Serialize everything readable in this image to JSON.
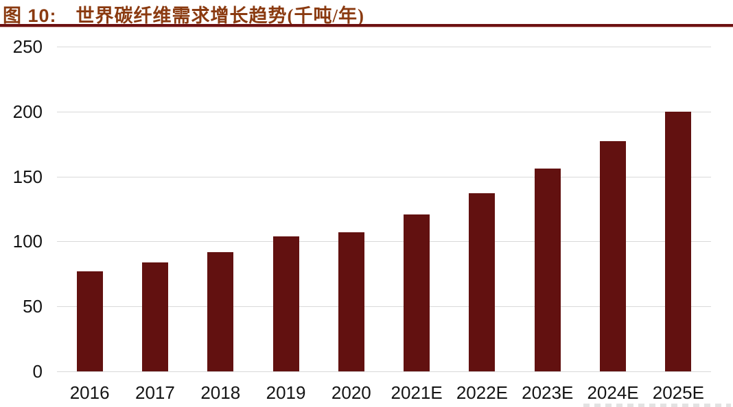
{
  "header": {
    "figure_label": "图 10:",
    "title": "世界碳纤维需求增长趋势(千吨/年)"
  },
  "colors": {
    "bar": "#621110",
    "title_text": "#8a3a10",
    "title_rule": "#6d1112",
    "gridline": "#d9d9d9",
    "axis_text": "#141414",
    "background": "#ffffff"
  },
  "chart_data": {
    "type": "bar",
    "title": "世界碳纤维需求增长趋势(千吨/年)",
    "categories": [
      "2016",
      "2017",
      "2018",
      "2019",
      "2020",
      "2021E",
      "2022E",
      "2023E",
      "2024E",
      "2025E"
    ],
    "values": [
      77,
      84,
      92,
      104,
      107,
      121,
      137,
      156,
      177,
      200
    ],
    "xlabel": "",
    "ylabel": "",
    "ylim": [
      0,
      250
    ],
    "yticks": [
      0,
      50,
      100,
      150,
      200,
      250
    ],
    "grid": true,
    "legend_position": "none",
    "bar_color": "#621110"
  }
}
